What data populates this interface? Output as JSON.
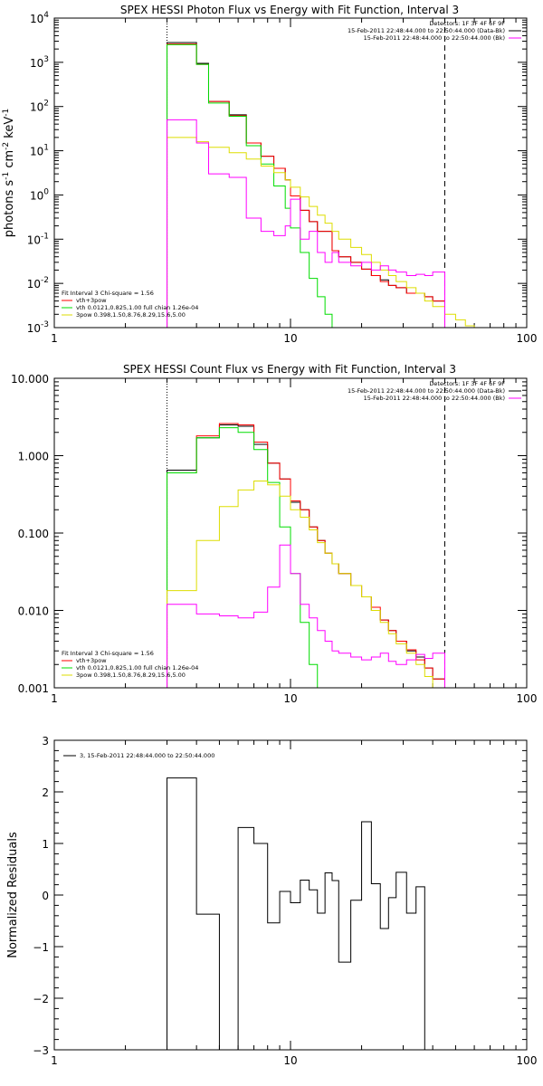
{
  "chart_data": [
    {
      "type": "line",
      "id": "photon",
      "title": "SPEX HESSI Photon Flux vs Energy with Fit Function, Interval 3",
      "ylabel": "photons s",
      "ylabel_parts": [
        "photons s",
        "-1",
        " cm",
        "-2",
        " keV",
        "-1"
      ],
      "xlim": [
        1,
        100
      ],
      "ylim": [
        0.001,
        10000
      ],
      "xscale": "log",
      "yscale": "log",
      "xticks": [
        {
          "v": 1,
          "label": "1"
        },
        {
          "v": 10,
          "label": "10"
        },
        {
          "v": 100,
          "label": "100"
        }
      ],
      "yticks": [
        {
          "v": 0.001,
          "base": "10",
          "exp": "-3"
        },
        {
          "v": 0.01,
          "base": "10",
          "exp": "-2"
        },
        {
          "v": 0.1,
          "base": "10",
          "exp": "-1"
        },
        {
          "v": 1,
          "base": "10",
          "exp": "0"
        },
        {
          "v": 10,
          "base": "10",
          "exp": "1"
        },
        {
          "v": 100,
          "base": "10",
          "exp": "2"
        },
        {
          "v": 1000,
          "base": "10",
          "exp": "3"
        },
        {
          "v": 10000,
          "base": "10",
          "exp": "4"
        }
      ],
      "vlines": [
        {
          "x": 3,
          "style": "dotted"
        },
        {
          "x": 45,
          "style": "dashed"
        }
      ],
      "info_right": [
        "Detectors: 1F 3F 4F 6F 9F",
        "15-Feb-2011 22:48:44.000 to 22:50:44.000 (Data-Bk)",
        "15-Feb-2011 22:48:44.000 to 22:50:44.000 (Bk)"
      ],
      "info_colors": [
        "#000000",
        "#ff00ff"
      ],
      "legend_title": "Fit Interval 3   Chi-square = 1.56",
      "legend": [
        {
          "label": "vth+3pow",
          "color": "#ff0000"
        },
        {
          "label": "vth 0.0121,0.825,1.00  full chian 1.26e-04",
          "color": "#00dd00"
        },
        {
          "label": "3pow 0.398,1.50,8.76,8.29,15.6,5.00",
          "color": "#dddd00"
        }
      ],
      "edges": [
        3,
        3.5,
        4,
        4.5,
        5,
        5.5,
        6,
        6.5,
        7,
        7.5,
        8,
        8.5,
        9,
        9.5,
        10,
        11,
        12,
        13,
        14,
        15,
        16,
        18,
        20,
        22,
        24,
        26,
        28,
        31,
        34,
        37,
        40,
        45,
        50,
        55,
        60,
        65,
        70,
        80
      ],
      "series": [
        {
          "color": "#000000",
          "width": 1,
          "values": [
            2800,
            2800,
            950,
            130,
            130,
            65,
            65,
            15,
            15,
            7.5,
            7.5,
            4,
            4,
            2.2,
            0.95,
            0.45,
            0.25,
            0.15,
            0.15,
            0.055,
            0.04,
            0.03,
            0.021,
            0.015,
            0.012,
            0.009,
            0.008,
            0.006,
            0.006,
            0.005,
            0.004
          ]
        },
        {
          "color": "#ff0000",
          "width": 1,
          "values": [
            2600,
            2600,
            900,
            130,
            130,
            62,
            62,
            15,
            15,
            7.5,
            7.5,
            4,
            4,
            2.2,
            0.95,
            0.45,
            0.25,
            0.15,
            0.15,
            0.055,
            0.04,
            0.03,
            0.021,
            0.015,
            0.011,
            0.009,
            0.008,
            0.006,
            0.006,
            0.005,
            0.004
          ]
        },
        {
          "color": "#00dd00",
          "width": 1,
          "values": [
            2500,
            2500,
            900,
            120,
            120,
            60,
            60,
            13,
            13,
            5,
            5,
            1.6,
            1.6,
            0.5,
            0.18,
            0.05,
            0.013,
            0.005,
            0.002,
            0.0008
          ]
        },
        {
          "color": "#dddd00",
          "width": 1,
          "values": [
            20,
            20,
            16,
            12,
            12,
            9,
            9,
            6.5,
            6.5,
            4.5,
            4.5,
            3.2,
            3.2,
            2.2,
            1.5,
            0.9,
            0.55,
            0.35,
            0.23,
            0.15,
            0.1,
            0.065,
            0.045,
            0.03,
            0.02,
            0.015,
            0.011,
            0.008,
            0.006,
            0.004,
            0.003,
            0.002,
            0.0015,
            0.0011,
            0.001,
            0.0008,
            0.0006
          ]
        },
        {
          "color": "#ff00ff",
          "width": 1,
          "values": [
            50,
            50,
            15,
            3,
            3,
            2.5,
            2.5,
            0.3,
            0.3,
            0.15,
            0.15,
            0.12,
            0.12,
            0.2,
            0.8,
            0.1,
            0.15,
            0.05,
            0.03,
            0.05,
            0.03,
            0.025,
            0.03,
            0.02,
            0.025,
            0.02,
            0.018,
            0.015,
            0.016,
            0.015,
            0.018
          ]
        }
      ]
    },
    {
      "type": "line",
      "id": "count",
      "title": "SPEX HESSI Count Flux vs Energy with Fit Function, Interval 3",
      "ylabel": "",
      "xlim": [
        1,
        100
      ],
      "ylim": [
        0.001,
        10
      ],
      "xscale": "log",
      "yscale": "log",
      "xticks": [
        {
          "v": 1,
          "label": "1"
        },
        {
          "v": 10,
          "label": "10"
        },
        {
          "v": 100,
          "label": "100"
        }
      ],
      "yticks": [
        {
          "v": 0.001,
          "label": "0.001"
        },
        {
          "v": 0.01,
          "label": "0.010"
        },
        {
          "v": 0.1,
          "label": "0.100"
        },
        {
          "v": 1,
          "label": "1.000"
        },
        {
          "v": 10,
          "label": "10.000"
        }
      ],
      "vlines": [
        {
          "x": 3,
          "style": "dotted"
        },
        {
          "x": 45,
          "style": "dashed"
        }
      ],
      "info_right": [
        "Detectors: 1F 3F 4F 6F 9F",
        "15-Feb-2011 22:48:44.000 to 22:50:44.000 (Data-Bk)",
        "15-Feb-2011 22:48:44.000 to 22:50:44.000 (Bk)"
      ],
      "info_colors": [
        "#000000",
        "#ff00ff"
      ],
      "legend_title": "Fit Interval 3   Chi-square = 1.56",
      "legend": [
        {
          "label": "vth+3pow",
          "color": "#ff0000"
        },
        {
          "label": "vth 0.0121,0.825,1.00  full chian 1.26e-04",
          "color": "#00dd00"
        },
        {
          "label": "3pow 0.398,1.50,8.76,8.29,15.6,5.00",
          "color": "#dddd00"
        }
      ],
      "edges": [
        3,
        4,
        5,
        6,
        7,
        8,
        9,
        10,
        11,
        12,
        13,
        14,
        15,
        16,
        18,
        20,
        22,
        24,
        26,
        28,
        31,
        34,
        37,
        40,
        45
      ],
      "series": [
        {
          "color": "#000000",
          "width": 1,
          "values": [
            0.65,
            1.7,
            2.5,
            2.4,
            1.4,
            0.8,
            0.5,
            0.25,
            0.2,
            0.12,
            0.08,
            0.055,
            0.04,
            0.03,
            0.021,
            0.015,
            0.01,
            0.0075,
            0.0055,
            0.004,
            0.003,
            0.0025,
            0.0018,
            0.0013
          ]
        },
        {
          "color": "#ff0000",
          "width": 1,
          "values": [
            0.6,
            1.8,
            2.6,
            2.5,
            1.5,
            0.8,
            0.5,
            0.26,
            0.2,
            0.12,
            0.08,
            0.055,
            0.04,
            0.03,
            0.021,
            0.015,
            0.011,
            0.0075,
            0.0055,
            0.004,
            0.0031,
            0.0023,
            0.0018,
            0.0013
          ]
        },
        {
          "color": "#00dd00",
          "width": 1,
          "values": [
            0.6,
            1.7,
            2.3,
            2.0,
            1.2,
            0.45,
            0.12,
            0.03,
            0.007,
            0.002,
            0.0008
          ]
        },
        {
          "color": "#dddd00",
          "width": 1,
          "values": [
            0.018,
            0.08,
            0.22,
            0.36,
            0.47,
            0.42,
            0.3,
            0.2,
            0.16,
            0.11,
            0.075,
            0.055,
            0.04,
            0.03,
            0.021,
            0.015,
            0.01,
            0.007,
            0.005,
            0.0037,
            0.0028,
            0.002,
            0.0014,
            0.001
          ]
        },
        {
          "color": "#ff00ff",
          "width": 1,
          "values": [
            0.012,
            0.009,
            0.0085,
            0.008,
            0.0095,
            0.02,
            0.07,
            0.03,
            0.012,
            0.008,
            0.0055,
            0.004,
            0.003,
            0.0028,
            0.0025,
            0.0023,
            0.0025,
            0.0028,
            0.0022,
            0.002,
            0.0023,
            0.0027,
            0.0024,
            0.0028
          ]
        }
      ]
    },
    {
      "type": "line",
      "id": "residuals",
      "title": "",
      "ylabel": "Normalized Residuals",
      "xlim": [
        1,
        100
      ],
      "ylim": [
        -3,
        3
      ],
      "xscale": "log",
      "yscale": "linear",
      "xticks": [
        {
          "v": 1,
          "label": "1"
        },
        {
          "v": 10,
          "label": "10"
        },
        {
          "v": 100,
          "label": "100"
        }
      ],
      "yticks": [
        {
          "v": -3,
          "label": "−3"
        },
        {
          "v": -2,
          "label": "−2"
        },
        {
          "v": -1,
          "label": "−1"
        },
        {
          "v": 0,
          "label": "0"
        },
        {
          "v": 1,
          "label": "1"
        },
        {
          "v": 2,
          "label": "2"
        },
        {
          "v": 3,
          "label": "3"
        }
      ],
      "vlines": [],
      "info_left": "3, 15-Feb-2011 22:48:44.000 to 22:50:44.000",
      "edges": [
        3,
        4,
        5,
        6,
        7,
        8,
        9,
        10,
        11,
        12,
        13,
        14,
        15,
        16,
        18,
        20,
        22,
        24,
        26,
        28,
        31,
        34,
        37,
        40,
        45
      ],
      "series": [
        {
          "color": "#000000",
          "width": 1,
          "values": [
            2.27,
            -0.37,
            -3.0,
            1.31,
            1.0,
            -0.54,
            0.07,
            -0.15,
            0.29,
            0.1,
            -0.35,
            0.43,
            0.28,
            -1.3,
            -0.1,
            1.42,
            0.22,
            -0.65,
            -0.05,
            0.44,
            -0.35,
            0.16
          ]
        }
      ]
    }
  ]
}
